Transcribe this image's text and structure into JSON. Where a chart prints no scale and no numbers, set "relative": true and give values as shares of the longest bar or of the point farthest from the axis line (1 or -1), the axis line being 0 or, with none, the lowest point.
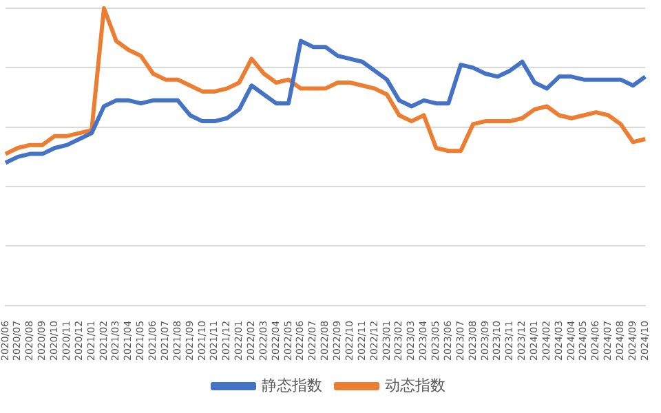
{
  "chart_data": {
    "type": "line",
    "relative": true,
    "grid": "y",
    "legend": "bottom",
    "marker": "none",
    "line_style": "solid",
    "categories": [
      "2020/06",
      "2020/07",
      "2020/08",
      "2020/09",
      "2020/10",
      "2020/11",
      "2020/12",
      "2021/01",
      "2021/02",
      "2021/03",
      "2021/04",
      "2021/05",
      "2021/06",
      "2021/07",
      "2021/08",
      "2021/09",
      "2021/10",
      "2021/11",
      "2021/12",
      "2022/01",
      "2022/02",
      "2022/03",
      "2022/04",
      "2022/05",
      "2022/06",
      "2022/07",
      "2022/08",
      "2022/09",
      "2022/10",
      "2022/11",
      "2022/12",
      "2023/01",
      "2023/02",
      "2023/03",
      "2023/04",
      "2023/05",
      "2023/06",
      "2023/07",
      "2023/08",
      "2023/09",
      "2023/10",
      "2023/11",
      "2023/12",
      "2024/01",
      "2024/02",
      "2024/03",
      "2024/04",
      "2024/05",
      "2024/06",
      "2024/07",
      "2024/08",
      "2024/09",
      "2024/10"
    ],
    "series": [
      {
        "name": "静态指数",
        "color": "#4472c4",
        "values": [
          0.48,
          0.5,
          0.51,
          0.51,
          0.53,
          0.54,
          0.56,
          0.58,
          0.67,
          0.69,
          0.69,
          0.68,
          0.69,
          0.69,
          0.69,
          0.64,
          0.62,
          0.62,
          0.63,
          0.66,
          0.74,
          0.71,
          0.68,
          0.68,
          0.89,
          0.87,
          0.87,
          0.84,
          0.83,
          0.82,
          0.79,
          0.76,
          0.69,
          0.67,
          0.69,
          0.68,
          0.68,
          0.81,
          0.8,
          0.78,
          0.77,
          0.79,
          0.82,
          0.75,
          0.73,
          0.77,
          0.77,
          0.76,
          0.76,
          0.76,
          0.76,
          0.74,
          0.77
        ]
      },
      {
        "name": "动态指数",
        "color": "#ed7d31",
        "values": [
          0.51,
          0.53,
          0.54,
          0.54,
          0.57,
          0.57,
          0.58,
          0.59,
          1,
          0.89,
          0.86,
          0.84,
          0.78,
          0.76,
          0.76,
          0.74,
          0.72,
          0.72,
          0.73,
          0.75,
          0.83,
          0.78,
          0.75,
          0.76,
          0.73,
          0.73,
          0.73,
          0.75,
          0.75,
          0.74,
          0.73,
          0.71,
          0.64,
          0.62,
          0.64,
          0.53,
          0.52,
          0.52,
          0.61,
          0.62,
          0.62,
          0.62,
          0.63,
          0.66,
          0.67,
          0.64,
          0.63,
          0.64,
          0.65,
          0.64,
          0.61,
          0.55,
          0.56
        ]
      }
    ]
  }
}
